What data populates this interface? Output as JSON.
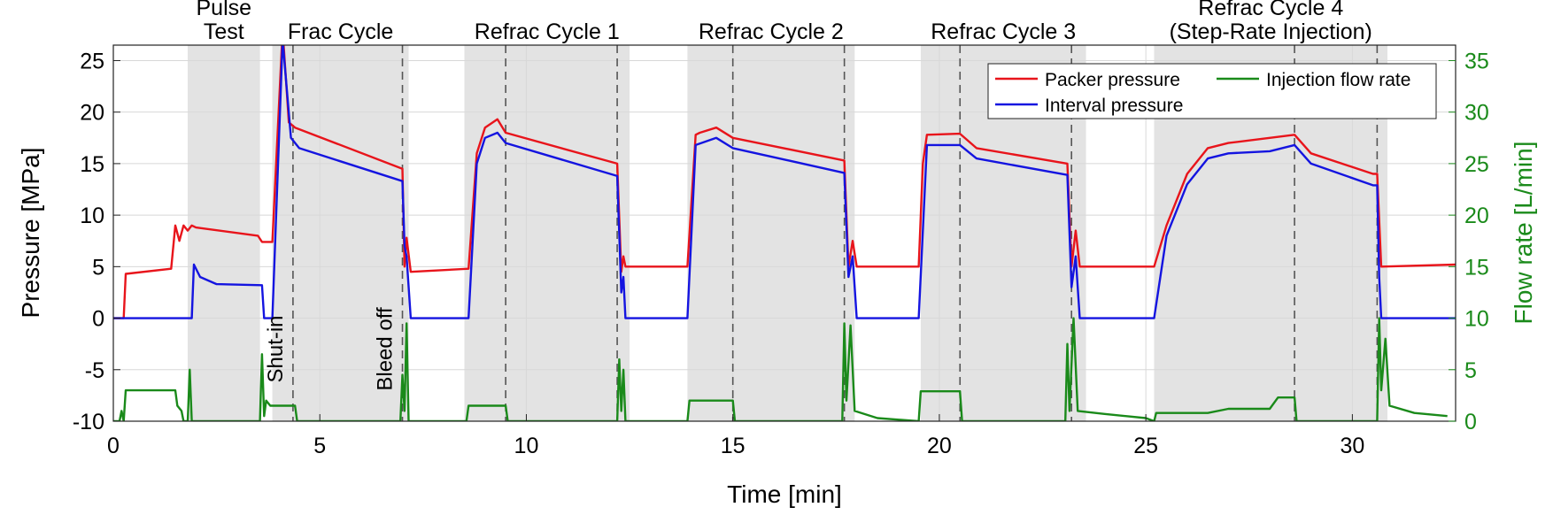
{
  "chart_data": {
    "type": "line",
    "xlabel": "Time [min]",
    "ylabel": "Pressure [MPa]",
    "y2label": "Flow rate [L/min]",
    "xlim": [
      0,
      32.5
    ],
    "ylim": [
      -10,
      26.5
    ],
    "y2lim": [
      0,
      36.5
    ],
    "xticks": [
      0,
      5,
      10,
      15,
      20,
      25,
      30
    ],
    "yticks": [
      -10,
      -5,
      0,
      5,
      10,
      15,
      20,
      25
    ],
    "y2ticks": [
      0,
      5,
      10,
      15,
      20,
      25,
      30,
      35
    ],
    "grid": true,
    "legend": "upper right",
    "y2color": "#1a8a1a",
    "regions": [
      {
        "lines": [
          "Pulse",
          "Test"
        ],
        "xlim": [
          1.8,
          3.55
        ]
      },
      {
        "lines": [
          "Frac Cycle"
        ],
        "xlim": [
          3.85,
          7.15
        ]
      },
      {
        "lines": [
          "Refrac Cycle 1"
        ],
        "xlim": [
          8.5,
          12.5
        ]
      },
      {
        "lines": [
          "Refrac Cycle 2"
        ],
        "xlim": [
          13.9,
          17.95
        ]
      },
      {
        "lines": [
          "Refrac Cycle 3"
        ],
        "xlim": [
          19.55,
          23.55
        ]
      },
      {
        "lines": [
          "Refrac Cycle 4",
          "(Step-Rate Injection)"
        ],
        "xlim": [
          25.2,
          30.85
        ]
      }
    ],
    "event_lines": [
      4.35,
      7.0,
      9.5,
      12.2,
      15.0,
      17.7,
      20.5,
      23.2,
      28.6,
      30.6
    ],
    "annotations": [
      {
        "text": "Shut-in",
        "x": 4.35
      },
      {
        "text": "Bleed off",
        "x": 7.0
      }
    ],
    "series": [
      {
        "name": "Packer pressure",
        "color": "#e8141b",
        "x": [
          0,
          0.25,
          0.3,
          1.4,
          1.5,
          1.6,
          1.7,
          1.8,
          1.9,
          2.0,
          3.5,
          3.6,
          3.85,
          4.1,
          4.25,
          4.4,
          7.0,
          7.05,
          7.1,
          7.2,
          8.6,
          8.8,
          9.0,
          9.3,
          9.5,
          12.2,
          12.3,
          12.35,
          12.4,
          13.9,
          14.1,
          14.2,
          14.6,
          15.0,
          17.7,
          17.8,
          17.9,
          18.0,
          19.5,
          19.6,
          19.7,
          20.5,
          20.9,
          23.1,
          23.2,
          23.3,
          23.4,
          25.2,
          25.5,
          26.0,
          26.5,
          27.0,
          28.0,
          28.6,
          29.0,
          30.5,
          30.6,
          30.7,
          32.5
        ],
        "values": [
          0,
          0,
          4.3,
          4.8,
          9,
          7.5,
          9,
          8.5,
          9,
          8.8,
          8,
          7.4,
          7.4,
          28,
          19,
          18.5,
          14.5,
          5,
          7.8,
          4.5,
          4.8,
          16,
          18.5,
          19.3,
          18,
          15,
          4.5,
          6,
          5,
          5,
          17.8,
          18,
          18.5,
          17.5,
          15.3,
          5,
          7.5,
          5,
          5,
          15,
          17.8,
          17.9,
          16.5,
          15,
          5,
          8.5,
          5,
          5,
          9,
          14,
          16.5,
          17,
          17.5,
          17.8,
          16,
          14,
          14,
          5,
          5.2
        ]
      },
      {
        "name": "Interval pressure",
        "color": "#1414e0",
        "x": [
          0,
          1.9,
          1.95,
          2.1,
          2.5,
          3.6,
          3.65,
          3.85,
          4.1,
          4.3,
          4.5,
          7.0,
          7.05,
          7.1,
          7.2,
          8.6,
          8.8,
          9.0,
          9.3,
          9.5,
          12.2,
          12.3,
          12.35,
          12.4,
          13.9,
          14.1,
          14.6,
          15.0,
          17.7,
          17.8,
          17.9,
          18.0,
          19.5,
          19.7,
          20.5,
          20.9,
          23.1,
          23.2,
          23.3,
          23.4,
          25.2,
          25.5,
          26.0,
          26.5,
          27.0,
          28.0,
          28.6,
          29.0,
          30.5,
          30.6,
          30.65,
          30.7,
          32.5
        ],
        "values": [
          0,
          0,
          5.2,
          4,
          3.3,
          3.2,
          0,
          0,
          27,
          17.5,
          16.5,
          13.3,
          7,
          6,
          0,
          0,
          15,
          17.5,
          18,
          17,
          13.8,
          2.5,
          4,
          0,
          0,
          16.8,
          17.5,
          16.5,
          14.1,
          4,
          6,
          0,
          0,
          16.8,
          16.8,
          15.5,
          13.9,
          3,
          6,
          0,
          0,
          8,
          13,
          15.5,
          16,
          16.2,
          16.8,
          15,
          12.9,
          12.9,
          4,
          0,
          0
        ]
      },
      {
        "name": "Injection flow rate",
        "color": "#1a8a1a",
        "axis": "y2",
        "x": [
          0,
          0.15,
          0.2,
          0.25,
          0.3,
          1.5,
          1.55,
          1.65,
          1.7,
          1.8,
          1.85,
          1.9,
          3.55,
          3.6,
          3.65,
          3.7,
          3.8,
          4.4,
          4.45,
          6.95,
          7.0,
          7.05,
          7.1,
          7.15,
          8.55,
          8.6,
          9.5,
          9.55,
          12.2,
          12.25,
          12.3,
          12.35,
          12.4,
          13.9,
          13.95,
          15.0,
          15.05,
          17.65,
          17.7,
          17.75,
          17.85,
          17.95,
          18.5,
          19.5,
          19.55,
          20.5,
          20.55,
          23.05,
          23.1,
          23.15,
          23.25,
          23.35,
          24.0,
          25.0,
          25.2,
          25.25,
          26.5,
          27.0,
          28.0,
          28.2,
          28.6,
          28.65,
          30.6,
          30.65,
          30.7,
          30.8,
          30.9,
          31.5,
          32.3
        ],
        "values": [
          0,
          0,
          1,
          0,
          3,
          3,
          1.5,
          1,
          0,
          0,
          5,
          0,
          0,
          6.5,
          0.5,
          2,
          1.5,
          1.5,
          0,
          0,
          4.5,
          1,
          9.5,
          0,
          0,
          1.5,
          1.5,
          0,
          0,
          6,
          1,
          5,
          0,
          0,
          2,
          2,
          0,
          0,
          9.5,
          2,
          9.3,
          1,
          0.3,
          0,
          2.9,
          2.9,
          0,
          0,
          7.5,
          1,
          10,
          1,
          0.7,
          0.3,
          0,
          0.8,
          0.8,
          1.2,
          1.2,
          2.3,
          2.3,
          0,
          0,
          10,
          3,
          8,
          1.5,
          0.8,
          0.5
        ]
      }
    ]
  }
}
